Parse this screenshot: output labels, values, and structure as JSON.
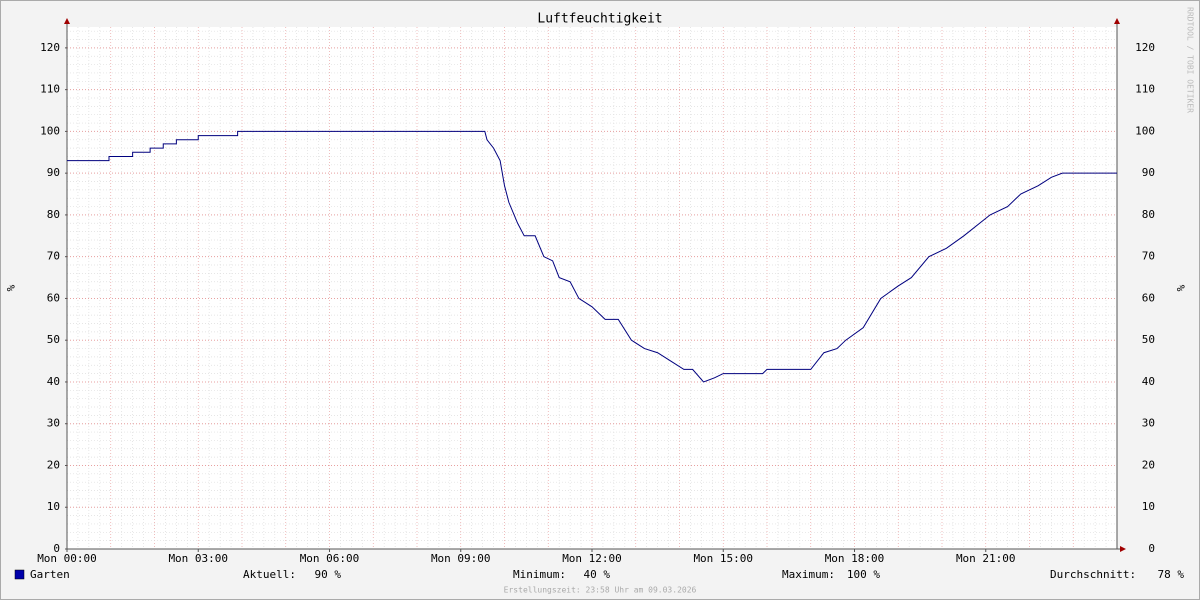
{
  "chart_data": {
    "type": "line",
    "title": "Luftfeuchtigkeit",
    "y_label": "%",
    "y2_label": "%",
    "watermark": "RRDTOOL / TOBI OETIKER",
    "x": [
      0,
      0.96,
      0.96,
      1.5,
      1.5,
      1.9,
      1.9,
      2.2,
      2.2,
      2.5,
      2.5,
      3.0,
      3.0,
      3.9,
      3.9,
      9.55,
      9.6,
      9.75,
      9.9,
      10.0,
      10.1,
      10.3,
      10.45,
      10.7,
      10.9,
      11.1,
      11.25,
      11.5,
      11.7,
      12.0,
      12.3,
      12.6,
      12.9,
      13.2,
      13.5,
      13.8,
      14.1,
      14.3,
      14.55,
      14.8,
      15.0,
      15.3,
      15.9,
      16.0,
      16.5,
      17.0,
      17.3,
      17.6,
      17.8,
      18.2,
      18.6,
      19.0,
      19.3,
      19.7,
      20.1,
      20.5,
      21.1,
      21.5,
      21.8,
      22.2,
      22.5,
      22.75,
      24
    ],
    "series": [
      {
        "name": "Garten",
        "color": "#00007f",
        "legend_color": "#0000aa",
        "values": [
          93,
          93,
          94,
          94,
          95,
          95,
          96,
          96,
          97,
          97,
          98,
          98,
          99,
          99,
          100,
          100,
          98,
          96,
          93,
          87,
          83,
          78,
          75,
          75,
          70,
          69,
          65,
          64,
          60,
          58,
          55,
          55,
          50,
          48,
          47,
          45,
          43,
          43,
          40,
          41,
          42,
          42,
          42,
          43,
          43,
          43,
          47,
          48,
          50,
          53,
          60,
          63,
          65,
          70,
          72,
          75,
          80,
          82,
          85,
          87,
          89,
          90,
          90
        ]
      }
    ],
    "xlim": [
      0,
      24
    ],
    "xticks": [
      {
        "value": 0,
        "label": "Mon 00:00"
      },
      {
        "value": 3,
        "label": "Mon 03:00"
      },
      {
        "value": 6,
        "label": "Mon 06:00"
      },
      {
        "value": 9,
        "label": "Mon 09:00"
      },
      {
        "value": 12,
        "label": "Mon 12:00"
      },
      {
        "value": 15,
        "label": "Mon 15:00"
      },
      {
        "value": 18,
        "label": "Mon 18:00"
      },
      {
        "value": 21,
        "label": "Mon 21:00"
      }
    ],
    "ylim": [
      0,
      125
    ],
    "yticks": [
      0,
      10,
      20,
      30,
      40,
      50,
      60,
      70,
      80,
      90,
      100,
      110,
      120
    ],
    "grid": true,
    "stats": [
      {
        "label": "Aktuell:",
        "value": "90 %"
      },
      {
        "label": "Minimum:",
        "value": "40 %"
      },
      {
        "label": "Maximum:",
        "value": "100 %"
      },
      {
        "label": "Durchschnitt:",
        "value": "78 %"
      }
    ],
    "footer": "Erstellungszeit: 23:58 Uhr am 09.03.2026"
  }
}
